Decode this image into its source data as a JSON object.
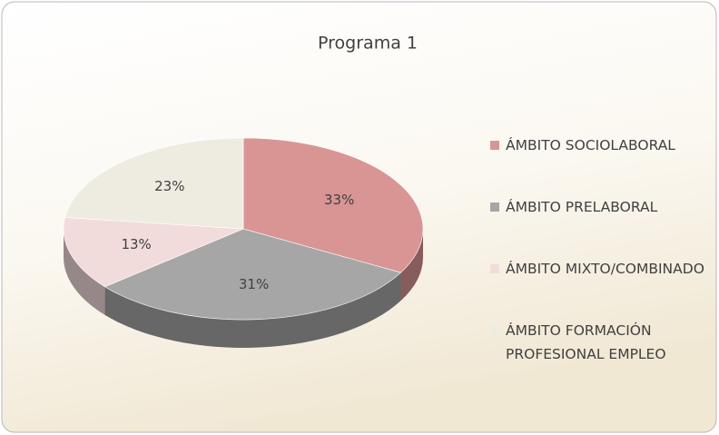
{
  "chart_data": {
    "type": "pie",
    "title": "Programa 1",
    "categories": [
      "ÁMBITO SOCIOLABORAL",
      "ÁMBITO PRELABORAL",
      "ÁMBITO MIXTO/COMBINADO",
      "ÁMBITO FORMACIÓN PROFESIONAL EMPLEO"
    ],
    "values": [
      33,
      31,
      13,
      23
    ],
    "value_labels": [
      "33%",
      "31%",
      "13%",
      "23%"
    ],
    "colors": [
      "#d99594",
      "#a6a6a6",
      "#f2dcdb",
      "#eeece1"
    ],
    "legend": "right"
  }
}
